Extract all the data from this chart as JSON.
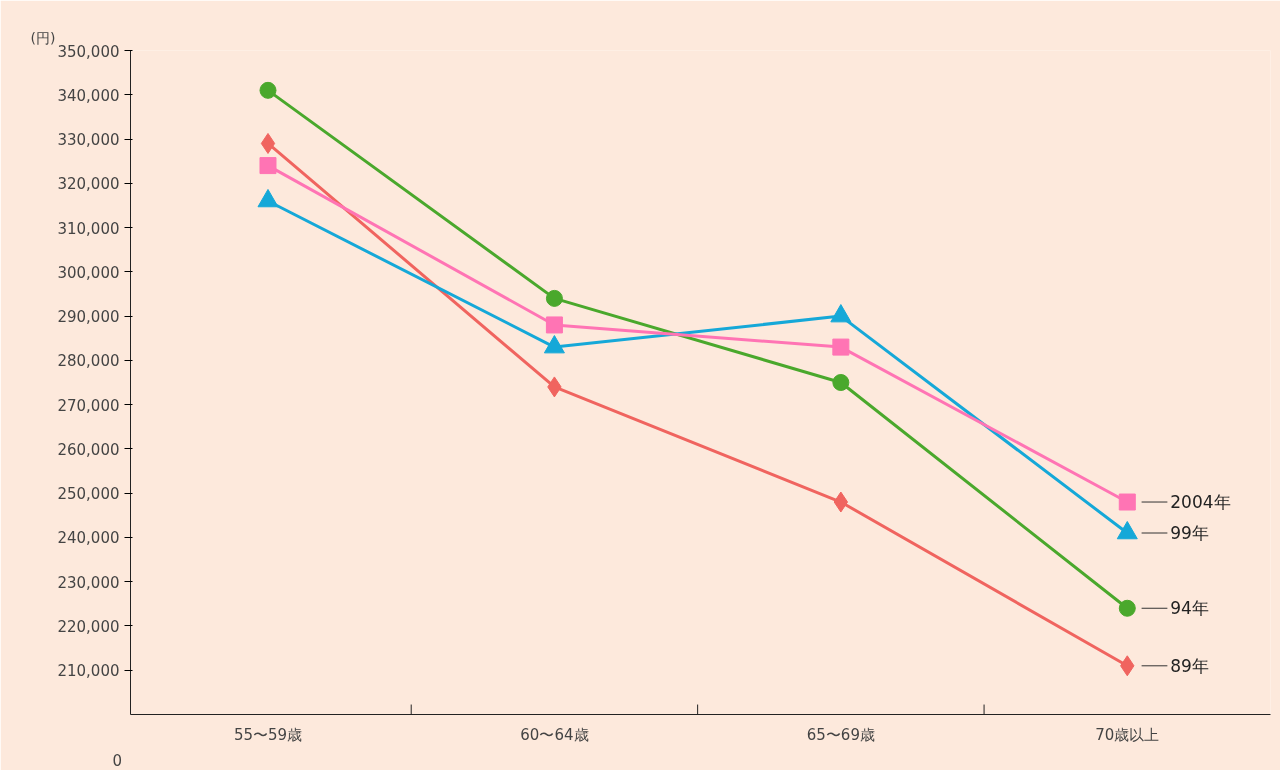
{
  "chart_data": {
    "type": "line",
    "ylabel": "(円)",
    "categories": [
      "55〜59歳",
      "60〜64歳",
      "65〜69歳",
      "70歳以上"
    ],
    "series": [
      {
        "name": "89年",
        "color": "#f0645f",
        "marker": "diamond",
        "values": [
          329000,
          274000,
          248000,
          211000
        ]
      },
      {
        "name": "94年",
        "color": "#4aa82c",
        "marker": "circle",
        "values": [
          341000,
          294000,
          275000,
          224000
        ]
      },
      {
        "name": "99年",
        "color": "#15a8d8",
        "marker": "triangle",
        "values": [
          316000,
          283000,
          290000,
          241000
        ]
      },
      {
        "name": "2004年",
        "color": "#ff74b4",
        "marker": "square",
        "values": [
          324000,
          288000,
          283000,
          248000
        ]
      }
    ],
    "ylim": [
      200000,
      350000
    ],
    "annotations": [
      "0"
    ],
    "yticks": [
      {
        "value": 210000,
        "label": "210,000"
      },
      {
        "value": 220000,
        "label": "220,000"
      },
      {
        "value": 230000,
        "label": "230,000"
      },
      {
        "value": 240000,
        "label": "240,000"
      },
      {
        "value": 250000,
        "label": "250,000"
      },
      {
        "value": 260000,
        "label": "260,000"
      },
      {
        "value": 270000,
        "label": "270,000"
      },
      {
        "value": 280000,
        "label": "280,000"
      },
      {
        "value": 290000,
        "label": "290,000"
      },
      {
        "value": 300000,
        "label": "300,000"
      },
      {
        "value": 310000,
        "label": "310,000"
      },
      {
        "value": 320000,
        "label": "320,000"
      },
      {
        "value": 330000,
        "label": "330,000"
      },
      {
        "value": 340000,
        "label": "340,000"
      },
      {
        "value": 350000,
        "label": "350,000"
      }
    ],
    "grid": false,
    "legend": false,
    "line_style": "solid"
  }
}
